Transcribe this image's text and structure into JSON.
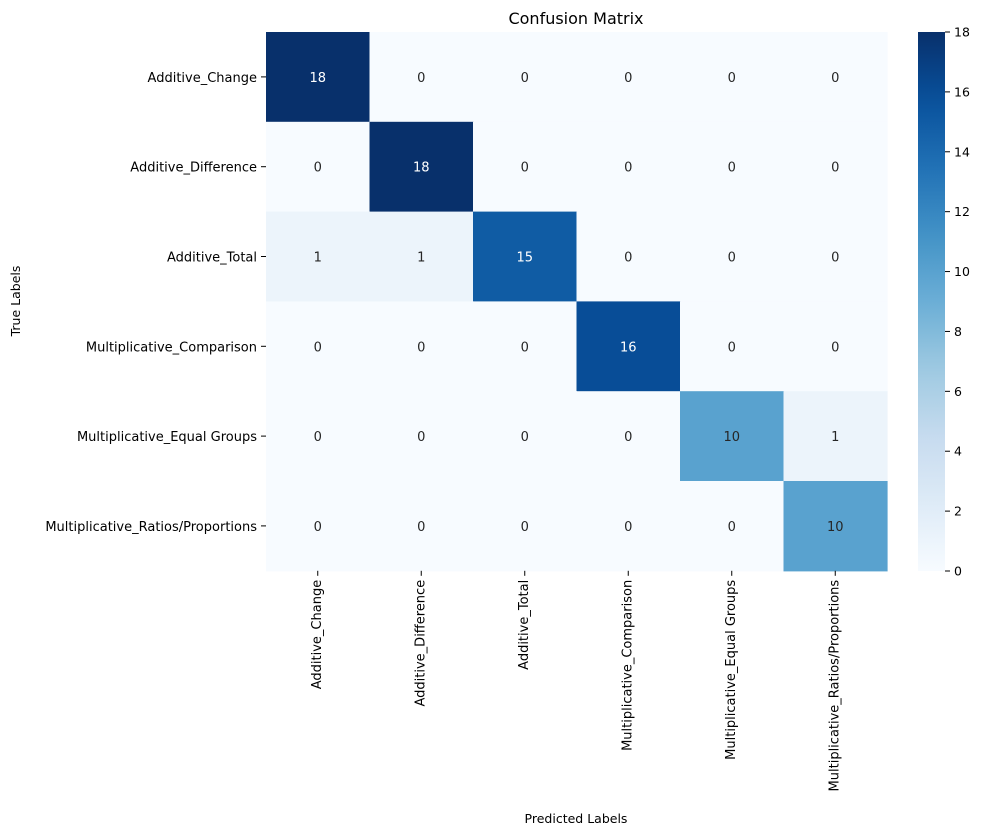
{
  "chart_data": {
    "type": "heatmap",
    "title": "Confusion Matrix",
    "xlabel": "Predicted Labels",
    "ylabel": "True Labels",
    "row_labels": [
      "Additive_Change",
      "Additive_Difference",
      "Additive_Total",
      "Multiplicative_Comparison",
      "Multiplicative_Equal Groups",
      "Multiplicative_Ratios/Proportions"
    ],
    "col_labels": [
      "Additive_Change",
      "Additive_Difference",
      "Additive_Total",
      "Multiplicative_Comparison",
      "Multiplicative_Equal Groups",
      "Multiplicative_Ratios/Proportions"
    ],
    "values": [
      [
        18,
        0,
        0,
        0,
        0,
        0
      ],
      [
        0,
        18,
        0,
        0,
        0,
        0
      ],
      [
        1,
        1,
        15,
        0,
        0,
        0
      ],
      [
        0,
        0,
        0,
        16,
        0,
        0
      ],
      [
        0,
        0,
        0,
        0,
        10,
        1
      ],
      [
        0,
        0,
        0,
        0,
        0,
        10
      ]
    ],
    "colormap": "Blues",
    "vmin": 0,
    "vmax": 18,
    "colorbar_ticks": [
      0,
      2,
      4,
      6,
      8,
      10,
      12,
      14,
      16,
      18
    ]
  }
}
